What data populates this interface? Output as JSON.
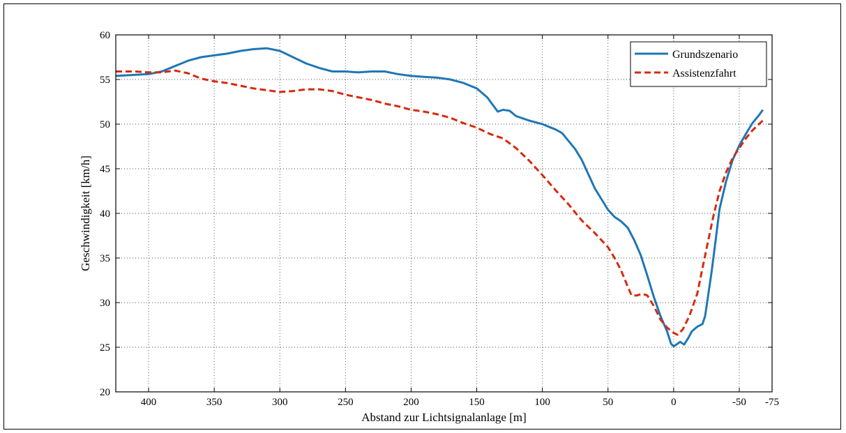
{
  "chart_data": {
    "type": "line",
    "title": "",
    "xlabel": "Abstand zur Lichtsignalanlage [m]",
    "ylabel": "Geschwindigkeit [km/h]",
    "xlim": [
      425,
      -75
    ],
    "ylim": [
      20,
      60
    ],
    "x_reversed": true,
    "grid": true,
    "legend_position": "top-right",
    "x_ticks": [
      400,
      350,
      300,
      250,
      200,
      150,
      100,
      50,
      0,
      -50,
      -75
    ],
    "x_tick_labels": [
      "400",
      "350",
      "300",
      "250",
      "200",
      "150",
      "100",
      "50",
      "0",
      "-50",
      "-75"
    ],
    "y_ticks": [
      20,
      25,
      30,
      35,
      40,
      45,
      50,
      55,
      60
    ],
    "y_tick_labels": [
      "20",
      "25",
      "30",
      "35",
      "40",
      "45",
      "50",
      "55",
      "60"
    ],
    "series": [
      {
        "name": "Grundszenario",
        "color": "#1f77b4",
        "style": "solid",
        "points": [
          [
            425,
            55.4
          ],
          [
            400,
            55.6
          ],
          [
            390,
            55.9
          ],
          [
            380,
            56.5
          ],
          [
            370,
            57.1
          ],
          [
            360,
            57.5
          ],
          [
            350,
            57.7
          ],
          [
            340,
            57.9
          ],
          [
            330,
            58.2
          ],
          [
            320,
            58.4
          ],
          [
            310,
            58.5
          ],
          [
            300,
            58.2
          ],
          [
            290,
            57.5
          ],
          [
            280,
            56.8
          ],
          [
            270,
            56.3
          ],
          [
            260,
            55.9
          ],
          [
            250,
            55.9
          ],
          [
            240,
            55.8
          ],
          [
            230,
            55.9
          ],
          [
            220,
            55.9
          ],
          [
            210,
            55.6
          ],
          [
            200,
            55.4
          ],
          [
            190,
            55.3
          ],
          [
            180,
            55.2
          ],
          [
            170,
            55.0
          ],
          [
            160,
            54.6
          ],
          [
            150,
            54.0
          ],
          [
            142,
            53.0
          ],
          [
            137,
            52.0
          ],
          [
            134,
            51.4
          ],
          [
            130,
            51.6
          ],
          [
            125,
            51.5
          ],
          [
            120,
            50.9
          ],
          [
            110,
            50.4
          ],
          [
            100,
            50.0
          ],
          [
            90,
            49.4
          ],
          [
            85,
            49.0
          ],
          [
            80,
            48.1
          ],
          [
            75,
            47.2
          ],
          [
            70,
            46.0
          ],
          [
            65,
            44.4
          ],
          [
            60,
            42.8
          ],
          [
            55,
            41.6
          ],
          [
            50,
            40.4
          ],
          [
            45,
            39.6
          ],
          [
            40,
            39.1
          ],
          [
            35,
            38.4
          ],
          [
            30,
            37.0
          ],
          [
            25,
            35.3
          ],
          [
            20,
            33.0
          ],
          [
            15,
            30.6
          ],
          [
            10,
            28.5
          ],
          [
            5,
            26.8
          ],
          [
            2,
            25.4
          ],
          [
            0,
            25.1
          ],
          [
            -2,
            25.3
          ],
          [
            -5,
            25.6
          ],
          [
            -8,
            25.3
          ],
          [
            -11,
            26.0
          ],
          [
            -14,
            26.8
          ],
          [
            -18,
            27.3
          ],
          [
            -22,
            27.6
          ],
          [
            -24,
            28.5
          ],
          [
            -26,
            30.5
          ],
          [
            -29,
            33.5
          ],
          [
            -32,
            37.0
          ],
          [
            -35,
            40.5
          ],
          [
            -40,
            43.6
          ],
          [
            -45,
            46.0
          ],
          [
            -50,
            47.6
          ],
          [
            -55,
            48.9
          ],
          [
            -60,
            50.1
          ],
          [
            -65,
            51.0
          ],
          [
            -68,
            51.6
          ]
        ]
      },
      {
        "name": "Assistenzfahrt",
        "color": "#d62a0f",
        "style": "dashed",
        "points": [
          [
            425,
            55.9
          ],
          [
            410,
            55.9
          ],
          [
            400,
            55.8
          ],
          [
            390,
            55.8
          ],
          [
            380,
            56.0
          ],
          [
            370,
            55.7
          ],
          [
            360,
            55.1
          ],
          [
            350,
            54.8
          ],
          [
            340,
            54.6
          ],
          [
            330,
            54.3
          ],
          [
            320,
            54.0
          ],
          [
            310,
            53.8
          ],
          [
            300,
            53.6
          ],
          [
            290,
            53.7
          ],
          [
            280,
            53.9
          ],
          [
            270,
            53.9
          ],
          [
            260,
            53.7
          ],
          [
            250,
            53.3
          ],
          [
            240,
            53.0
          ],
          [
            230,
            52.7
          ],
          [
            220,
            52.3
          ],
          [
            210,
            52.0
          ],
          [
            200,
            51.6
          ],
          [
            190,
            51.4
          ],
          [
            180,
            51.1
          ],
          [
            170,
            50.7
          ],
          [
            160,
            50.1
          ],
          [
            150,
            49.6
          ],
          [
            140,
            48.9
          ],
          [
            130,
            48.4
          ],
          [
            120,
            47.3
          ],
          [
            110,
            45.9
          ],
          [
            100,
            44.3
          ],
          [
            90,
            42.6
          ],
          [
            80,
            41.0
          ],
          [
            70,
            39.2
          ],
          [
            60,
            37.8
          ],
          [
            50,
            36.2
          ],
          [
            45,
            35.0
          ],
          [
            40,
            33.6
          ],
          [
            35,
            31.8
          ],
          [
            32,
            30.8
          ],
          [
            28,
            30.8
          ],
          [
            24,
            31.0
          ],
          [
            20,
            30.8
          ],
          [
            15,
            29.6
          ],
          [
            10,
            28.1
          ],
          [
            5,
            27.2
          ],
          [
            0,
            26.6
          ],
          [
            -3,
            26.4
          ],
          [
            -7,
            27.0
          ],
          [
            -12,
            28.5
          ],
          [
            -18,
            31.0
          ],
          [
            -25,
            36.0
          ],
          [
            -30,
            39.5
          ],
          [
            -35,
            42.5
          ],
          [
            -40,
            44.6
          ],
          [
            -45,
            46.2
          ],
          [
            -50,
            47.3
          ],
          [
            -55,
            48.4
          ],
          [
            -60,
            49.3
          ],
          [
            -65,
            50.0
          ],
          [
            -68,
            50.4
          ]
        ]
      }
    ]
  }
}
